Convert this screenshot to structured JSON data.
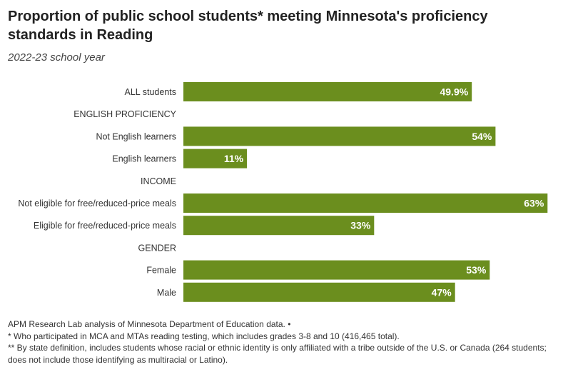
{
  "header": {
    "title": "Proportion of public school students* meeting Minnesota's proficiency standards in Reading",
    "subtitle": "2022-23 school year"
  },
  "chart_data": {
    "type": "bar",
    "orientation": "horizontal",
    "title": "Proportion of public school students* meeting Minnesota's proficiency standards in Reading",
    "subtitle": "2022-23 school year",
    "xlim": [
      0,
      100
    ],
    "unit": "%",
    "bar_color": "#6b8e1e",
    "rows": [
      {
        "label": "ALL students",
        "value": 49.9,
        "display": "49.9%"
      },
      {
        "label": "ENGLISH PROFICIENCY",
        "value": null,
        "display": ""
      },
      {
        "label": "Not English learners",
        "value": 54,
        "display": "54%"
      },
      {
        "label": "English learners",
        "value": 11,
        "display": "11%"
      },
      {
        "label": "INCOME",
        "value": null,
        "display": ""
      },
      {
        "label": "Not eligible for free/reduced-price meals",
        "value": 63,
        "display": "63%"
      },
      {
        "label": "Eligible for free/reduced-price meals",
        "value": 33,
        "display": "33%"
      },
      {
        "label": "GENDER",
        "value": null,
        "display": ""
      },
      {
        "label": "Female",
        "value": 53,
        "display": "53%"
      },
      {
        "label": "Male",
        "value": 47,
        "display": "47%"
      }
    ]
  },
  "notes": {
    "source": "APM Research Lab analysis of Minnesota Department of Education data. •",
    "footnote1": "* Who participated in MCA and MTAs reading testing, which includes grades 3-8 and 10 (416,465 total).",
    "footnote2": "** By state definition, includes students whose racial or ethnic identity is only affiliated with a tribe outside of the U.S. or Canada (264 students; does not include those identifying as multiracial or Latino)."
  }
}
